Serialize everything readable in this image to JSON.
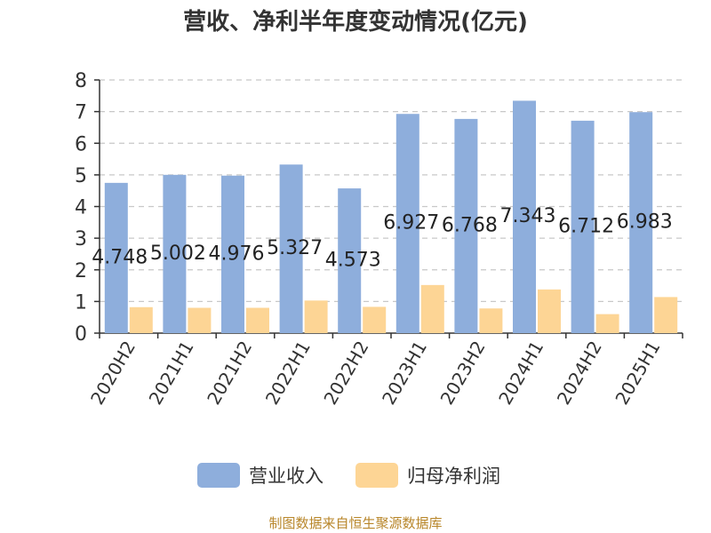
{
  "title": "营收、净利半年度变动情况(亿元)",
  "source": "制图数据来自恒生聚源数据库",
  "chart_data": {
    "type": "bar",
    "categories": [
      "2020H2",
      "2021H1",
      "2021H2",
      "2022H1",
      "2022H2",
      "2023H1",
      "2023H2",
      "2024H1",
      "2024H2",
      "2025H1"
    ],
    "series": [
      {
        "name": "营业收入",
        "color": "#8eaedc",
        "values": [
          4.748,
          5.002,
          4.976,
          5.327,
          4.573,
          6.927,
          6.768,
          7.343,
          6.712,
          6.983
        ],
        "labels": [
          "4.748",
          "5.002",
          "4.976",
          "5.327",
          "4.573",
          "6.927",
          "6.768",
          "7.343",
          "6.712",
          "6.983"
        ]
      },
      {
        "name": "归母净利润",
        "color": "#fdd595",
        "values": [
          0.82,
          0.8,
          0.8,
          1.03,
          0.83,
          1.52,
          0.78,
          1.38,
          0.6,
          1.14
        ]
      }
    ],
    "yticks": [
      "0",
      "1",
      "2",
      "3",
      "4",
      "5",
      "6",
      "7",
      "8"
    ],
    "ylim": [
      0,
      8
    ],
    "grid": true,
    "legend": "bottom"
  }
}
